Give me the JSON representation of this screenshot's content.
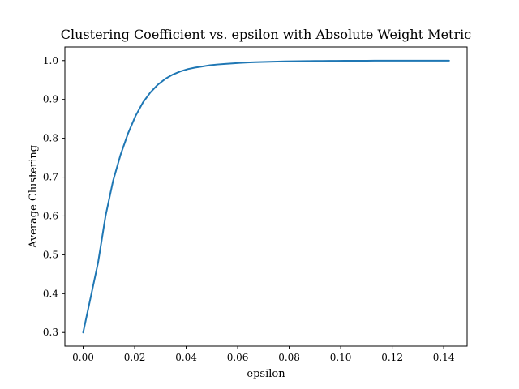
{
  "chart_data": {
    "type": "line",
    "title": "Clustering Coefficient vs. epsilon with Absolute Weight Metric",
    "xlabel": "epsilon",
    "ylabel": "Average Clustering",
    "xlim": [
      -0.0071,
      0.1491
    ],
    "ylim": [
      0.265,
      1.035
    ],
    "xticks": [
      0.0,
      0.02,
      0.04,
      0.06,
      0.08,
      0.1,
      0.12,
      0.14
    ],
    "xtick_labels": [
      "0.00",
      "0.02",
      "0.04",
      "0.06",
      "0.08",
      "0.10",
      "0.12",
      "0.14"
    ],
    "yticks": [
      0.3,
      0.4,
      0.5,
      0.6,
      0.7,
      0.8,
      0.9,
      1.0
    ],
    "ytick_labels": [
      "0.3",
      "0.4",
      "0.5",
      "0.6",
      "0.7",
      "0.8",
      "0.9",
      "1.0"
    ],
    "grid": false,
    "series": [
      {
        "color": "#1f77b4",
        "x": [
          0.0,
          0.0029,
          0.0058,
          0.0087,
          0.0116,
          0.0145,
          0.0174,
          0.0203,
          0.0232,
          0.0261,
          0.029,
          0.0319,
          0.0348,
          0.0377,
          0.0406,
          0.0435,
          0.0464,
          0.0493,
          0.0522,
          0.0551,
          0.058,
          0.0609,
          0.0638,
          0.0667,
          0.0696,
          0.0725,
          0.0754,
          0.0783,
          0.0812,
          0.0841,
          0.087,
          0.0899,
          0.0928,
          0.0957,
          0.0986,
          0.1015,
          0.1044,
          0.1073,
          0.1102,
          0.1131,
          0.116,
          0.1189,
          0.1218,
          0.1247,
          0.1276,
          0.1305,
          0.1334,
          0.1363,
          0.1392,
          0.1421
        ],
        "y": [
          0.3,
          0.39,
          0.48,
          0.6,
          0.69,
          0.757,
          0.812,
          0.857,
          0.892,
          0.918,
          0.938,
          0.953,
          0.964,
          0.972,
          0.978,
          0.982,
          0.985,
          0.988,
          0.99,
          0.9915,
          0.9928,
          0.994,
          0.995,
          0.9958,
          0.9965,
          0.997,
          0.9975,
          0.9979,
          0.9982,
          0.9985,
          0.9987,
          0.9989,
          0.9991,
          0.9992,
          0.9993,
          0.9994,
          0.9995,
          0.9996,
          0.9996,
          0.9997,
          0.9997,
          0.9998,
          0.9998,
          0.9998,
          0.9999,
          0.9999,
          0.9999,
          0.9999,
          0.9999,
          0.9999
        ]
      }
    ]
  }
}
